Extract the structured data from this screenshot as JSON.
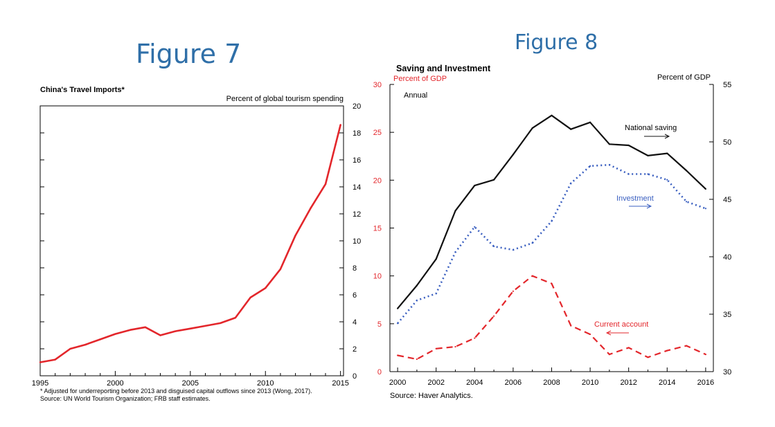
{
  "figures": {
    "fig7_heading": "Figure 7",
    "fig8_heading": "Figure 8"
  },
  "chart_data": [
    {
      "type": "line",
      "title": "China's Travel Imports*",
      "ylabel": "Percent of global tourism spending",
      "xlabel": "",
      "xlim": [
        1995,
        2015.2
      ],
      "ylim": [
        0,
        20
      ],
      "x_ticks": [
        "1995",
        "2000",
        "2005",
        "2010",
        "2015"
      ],
      "y_ticks": [
        "0",
        "2",
        "4",
        "6",
        "8",
        "10",
        "12",
        "14",
        "16",
        "18",
        "20"
      ],
      "grid": false,
      "series": [
        {
          "color": "#e3262b",
          "style": "solid",
          "x": [
            1995,
            1996,
            1997,
            1998,
            1999,
            2000,
            2001,
            2002,
            2003,
            2004,
            2005,
            2006,
            2007,
            2008,
            2009,
            2010,
            2011,
            2012,
            2013,
            2014,
            2015
          ],
          "values": [
            1.0,
            1.2,
            2.0,
            2.3,
            2.7,
            3.1,
            3.4,
            3.6,
            3.0,
            3.3,
            3.5,
            3.7,
            3.9,
            4.3,
            5.8,
            6.5,
            7.9,
            10.4,
            12.4,
            14.2,
            18.6
          ]
        }
      ],
      "footnotes": [
        "* Adjusted for underreporting before 2013 and disguised capital outflows since 2013 (Wong, 2017).",
        "Source: UN World Tourism Organization; FRB staff estimates."
      ]
    },
    {
      "type": "line",
      "title": "Saving and Investment",
      "subtitle": "Annual",
      "ylabel_left": "Percent of GDP",
      "ylabel_right": "Percent of GDP",
      "xlim": [
        1999.6,
        2016.4
      ],
      "ylim_left": [
        0,
        30
      ],
      "ylim_right": [
        30,
        55
      ],
      "x_ticks": [
        "2000",
        "2002",
        "2004",
        "2006",
        "2008",
        "2010",
        "2012",
        "2014",
        "2016"
      ],
      "y_ticks_left": [
        "0",
        "5",
        "10",
        "15",
        "20",
        "25",
        "30"
      ],
      "y_ticks_right": [
        "30",
        "35",
        "40",
        "45",
        "50",
        "55"
      ],
      "grid": false,
      "series": [
        {
          "name": "National saving",
          "axis": "right",
          "color": "#111111",
          "style": "solid",
          "x": [
            2000,
            2001,
            2002,
            2003,
            2004,
            2005,
            2006,
            2007,
            2008,
            2009,
            2010,
            2011,
            2012,
            2013,
            2014,
            2015,
            2016
          ],
          "values": [
            35.5,
            37.5,
            39.8,
            44.0,
            46.2,
            46.7,
            48.9,
            51.2,
            52.3,
            51.1,
            51.7,
            49.8,
            49.7,
            48.8,
            49.0,
            47.5,
            45.9
          ]
        },
        {
          "name": "Investment",
          "axis": "right",
          "color": "#3a5fc0",
          "style": "dotted",
          "x": [
            2000,
            2001,
            2002,
            2003,
            2004,
            2005,
            2006,
            2007,
            2008,
            2009,
            2010,
            2011,
            2012,
            2013,
            2014,
            2015,
            2016
          ],
          "values": [
            34.2,
            36.2,
            36.8,
            40.4,
            42.6,
            40.9,
            40.6,
            41.2,
            43.1,
            46.4,
            47.9,
            48.0,
            47.2,
            47.2,
            46.7,
            44.8,
            44.2
          ]
        },
        {
          "name": "Current account",
          "axis": "left",
          "color": "#e3262b",
          "style": "dashed",
          "x": [
            2000,
            2001,
            2002,
            2003,
            2004,
            2005,
            2006,
            2007,
            2008,
            2009,
            2010,
            2011,
            2012,
            2013,
            2014,
            2015,
            2016
          ],
          "values": [
            1.7,
            1.3,
            2.4,
            2.6,
            3.5,
            5.8,
            8.4,
            10.0,
            9.2,
            4.8,
            3.9,
            1.8,
            2.5,
            1.5,
            2.2,
            2.7,
            1.8
          ]
        }
      ],
      "annotations": {
        "saving_label": "National saving",
        "investment_label": "Investment",
        "current_account_label": "Current account"
      },
      "footnotes": [
        "Source: Haver Analytics."
      ]
    }
  ]
}
